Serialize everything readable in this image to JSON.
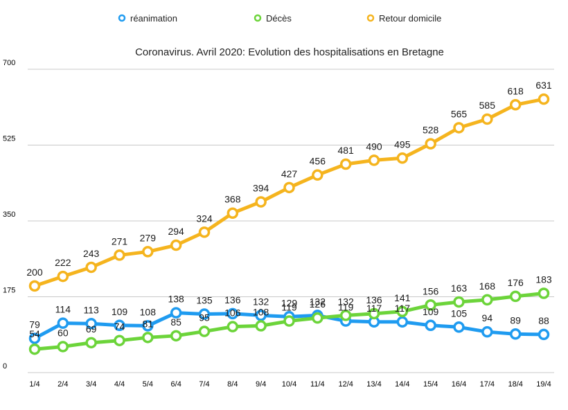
{
  "chart_data": {
    "type": "line",
    "title": "Coronavirus. Avril 2020: Evolution des hospitalisations en Bretagne",
    "xlabel": "",
    "ylabel": "",
    "categories": [
      "1/4",
      "2/4",
      "3/4",
      "4/4",
      "5/4",
      "6/4",
      "7/4",
      "8/4",
      "9/4",
      "10/4",
      "11/4",
      "12/4",
      "13/4",
      "14/4",
      "15/4",
      "16/4",
      "17/4",
      "18/4",
      "19/4"
    ],
    "yticks": [
      "0",
      "175",
      "350",
      "525",
      "700"
    ],
    "ylim": [
      0,
      700
    ],
    "grid": true,
    "legend_position": "top",
    "series": [
      {
        "name": "réanimation",
        "color": "#1f9bf0",
        "values": [
          79,
          114,
          113,
          109,
          108,
          138,
          135,
          136,
          132,
          129,
          132,
          119,
          117,
          117,
          109,
          105,
          94,
          89,
          88
        ]
      },
      {
        "name": "Décès",
        "color": "#6cd43a",
        "values": [
          54,
          60,
          69,
          74,
          81,
          85,
          95,
          106,
          108,
          119,
          126,
          132,
          136,
          141,
          156,
          163,
          168,
          176,
          183
        ]
      },
      {
        "name": "Retour domicile",
        "color": "#f5b41e",
        "values": [
          200,
          222,
          243,
          271,
          279,
          294,
          324,
          368,
          394,
          427,
          456,
          481,
          490,
          495,
          528,
          565,
          585,
          618,
          631
        ]
      }
    ]
  }
}
